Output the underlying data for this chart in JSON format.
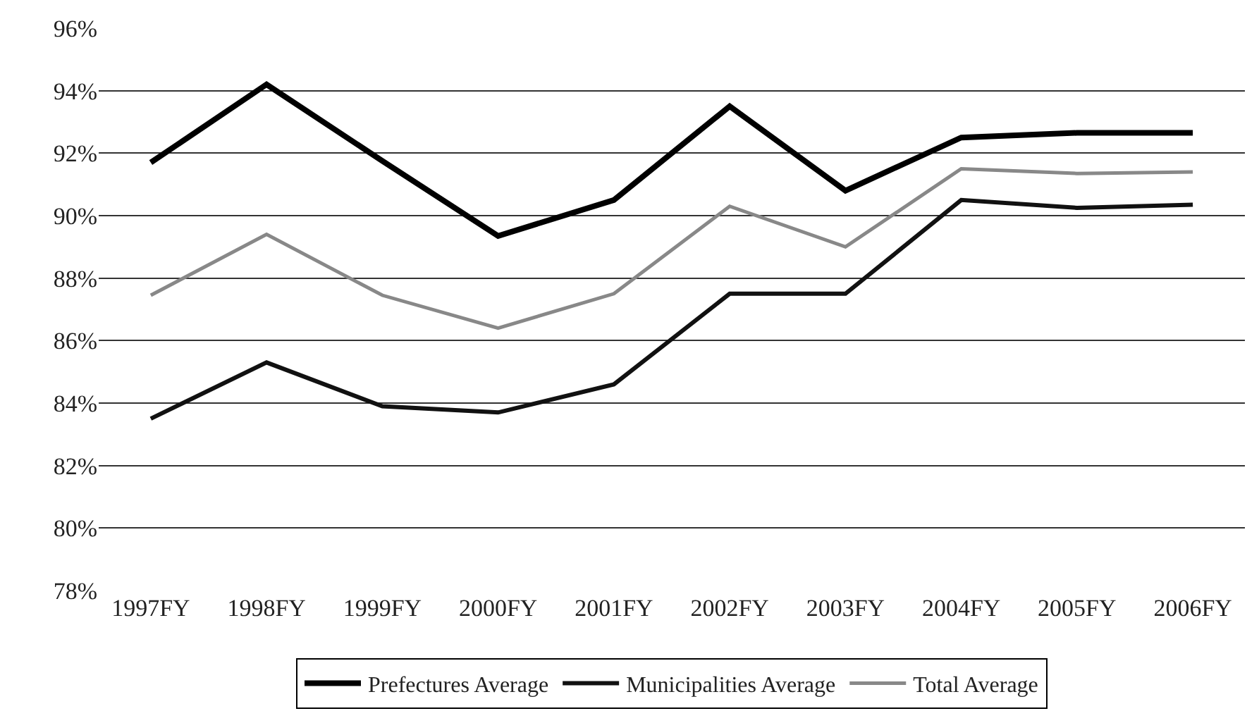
{
  "chart_data": {
    "type": "line",
    "categories": [
      "1997FY",
      "1998FY",
      "1999FY",
      "2000FY",
      "2001FY",
      "2002FY",
      "2003FY",
      "2004FY",
      "2005FY",
      "2006FY"
    ],
    "series": [
      {
        "name": "Prefectures Average",
        "color": "#000000",
        "values": [
          91.7,
          94.2,
          91.75,
          89.35,
          90.5,
          93.5,
          90.8,
          92.5,
          92.65,
          92.65
        ]
      },
      {
        "name": "Municipalities Average",
        "color": "#111111",
        "values": [
          83.5,
          85.3,
          83.9,
          83.7,
          84.6,
          87.5,
          87.5,
          90.5,
          90.25,
          90.35
        ]
      },
      {
        "name": "Total Average",
        "color": "#888888",
        "values": [
          87.45,
          89.4,
          87.45,
          86.4,
          87.5,
          90.3,
          89.0,
          91.5,
          91.35,
          91.4
        ]
      }
    ],
    "ylim": [
      78,
      96
    ],
    "yticks": [
      {
        "value": 78,
        "label": "78%"
      },
      {
        "value": 80,
        "label": "80%"
      },
      {
        "value": 82,
        "label": "82%"
      },
      {
        "value": 84,
        "label": "84%"
      },
      {
        "value": 86,
        "label": "86%"
      },
      {
        "value": 88,
        "label": "88%"
      },
      {
        "value": 90,
        "label": "90%"
      },
      {
        "value": 92,
        "label": "92%"
      },
      {
        "value": 94,
        "label": "94%"
      },
      {
        "value": 96,
        "label": "96%"
      }
    ],
    "grid": "y",
    "legend": "bottom",
    "marker": "none",
    "line_style": "solid"
  }
}
